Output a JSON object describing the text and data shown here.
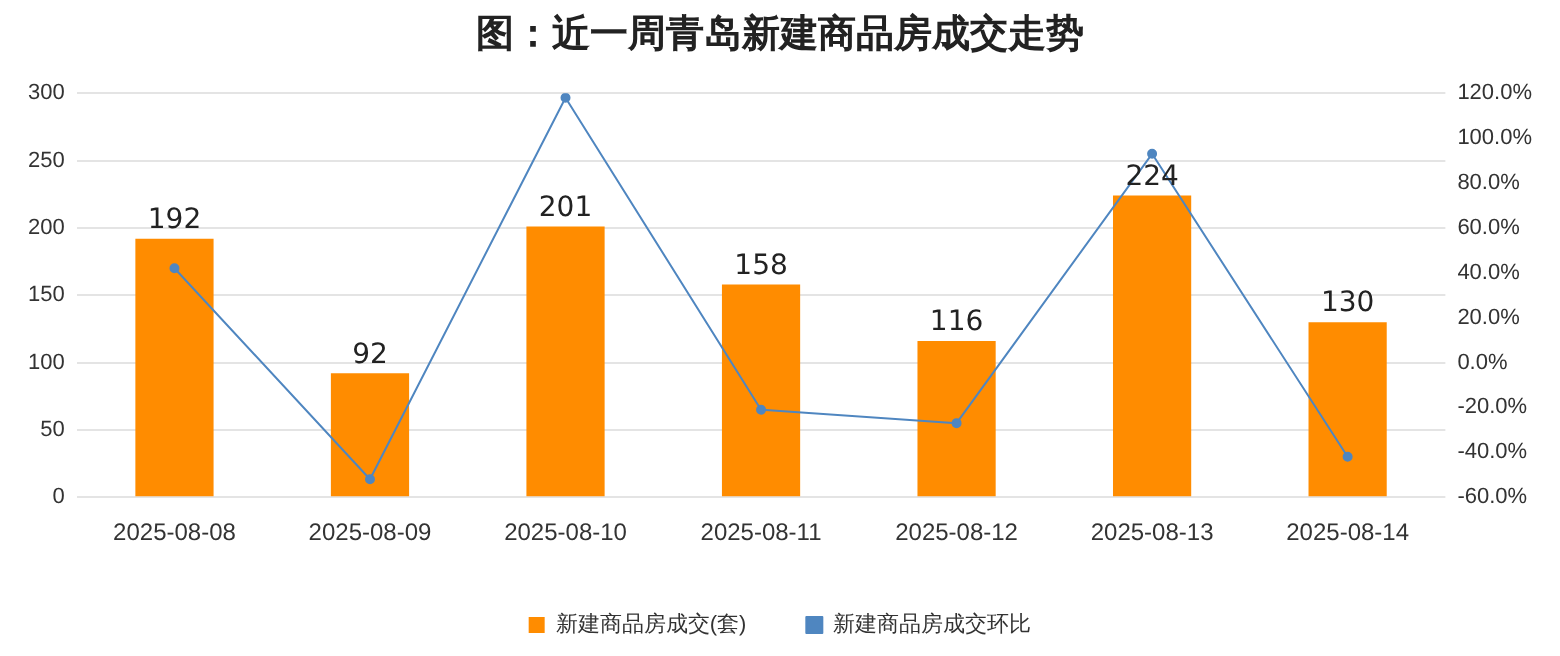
{
  "chart_data": {
    "type": "bar",
    "title": "图：近一周青岛新建商品房成交走势",
    "categories": [
      "2025-08-08",
      "2025-08-09",
      "2025-08-10",
      "2025-08-11",
      "2025-08-12",
      "2025-08-13",
      "2025-08-14"
    ],
    "series": [
      {
        "name": "新建商品房成交(套)",
        "color": "#ff8c00",
        "values": [
          192,
          92,
          201,
          158,
          116,
          224,
          130
        ]
      },
      {
        "name": "新建商品房成交环比",
        "type": "line",
        "axis": "y2",
        "color": "#4f86c0",
        "values": [
          42,
          -52,
          118,
          -21,
          -27,
          93,
          -42
        ]
      }
    ],
    "ylim": [
      0,
      300
    ],
    "yticks": [
      0,
      50,
      100,
      150,
      200,
      250,
      300
    ],
    "y2lim": [
      -60,
      120
    ],
    "y2ticks": [
      {
        "value": -60,
        "label": "-60.0%"
      },
      {
        "value": -40,
        "label": "-40.0%"
      },
      {
        "value": -20,
        "label": "-20.0%"
      },
      {
        "value": 0,
        "label": "0.0%"
      },
      {
        "value": 20,
        "label": "20.0%"
      },
      {
        "value": 40,
        "label": "40.0%"
      },
      {
        "value": 60,
        "label": "60.0%"
      },
      {
        "value": 80,
        "label": "80.0%"
      },
      {
        "value": 100,
        "label": "100.0%"
      },
      {
        "value": 120,
        "label": "120.0%"
      }
    ],
    "value_labels": [
      "192",
      "92",
      "201",
      "158",
      "116",
      "224",
      "130"
    ],
    "grid": "y",
    "legend": "bottom",
    "marker": "circle",
    "line_style": "solid"
  }
}
